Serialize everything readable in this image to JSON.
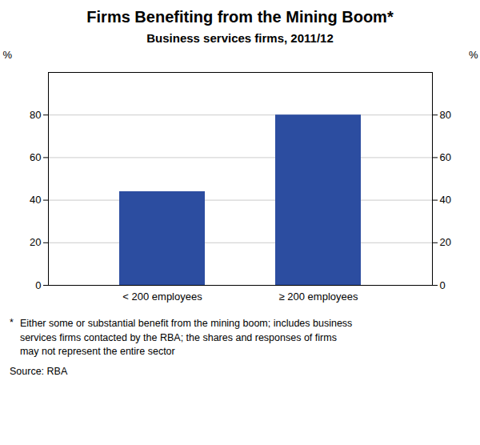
{
  "chart_data": {
    "type": "bar",
    "title": "Firms Benefiting from the Mining Boom*",
    "subtitle": "Business services firms, 2011/12",
    "categories": [
      "< 200 employees",
      "≥ 200 employees"
    ],
    "values": [
      44,
      80
    ],
    "color": "#2C4DA0",
    "ylim": [
      0,
      100
    ],
    "yticks": [
      0,
      20,
      40,
      60,
      80
    ],
    "y2lim": [
      0,
      100
    ],
    "y2ticks": [
      0,
      20,
      40,
      60,
      80
    ],
    "ylabel": "%",
    "y2label": "%",
    "grid": true,
    "footnote_mark": "*",
    "footnote": "Either some or substantial benefit from the mining boom; includes business\nservices firms contacted by the RBA; the shares and responses of firms\nmay not represent the entire sector",
    "source": "Source: RBA"
  }
}
